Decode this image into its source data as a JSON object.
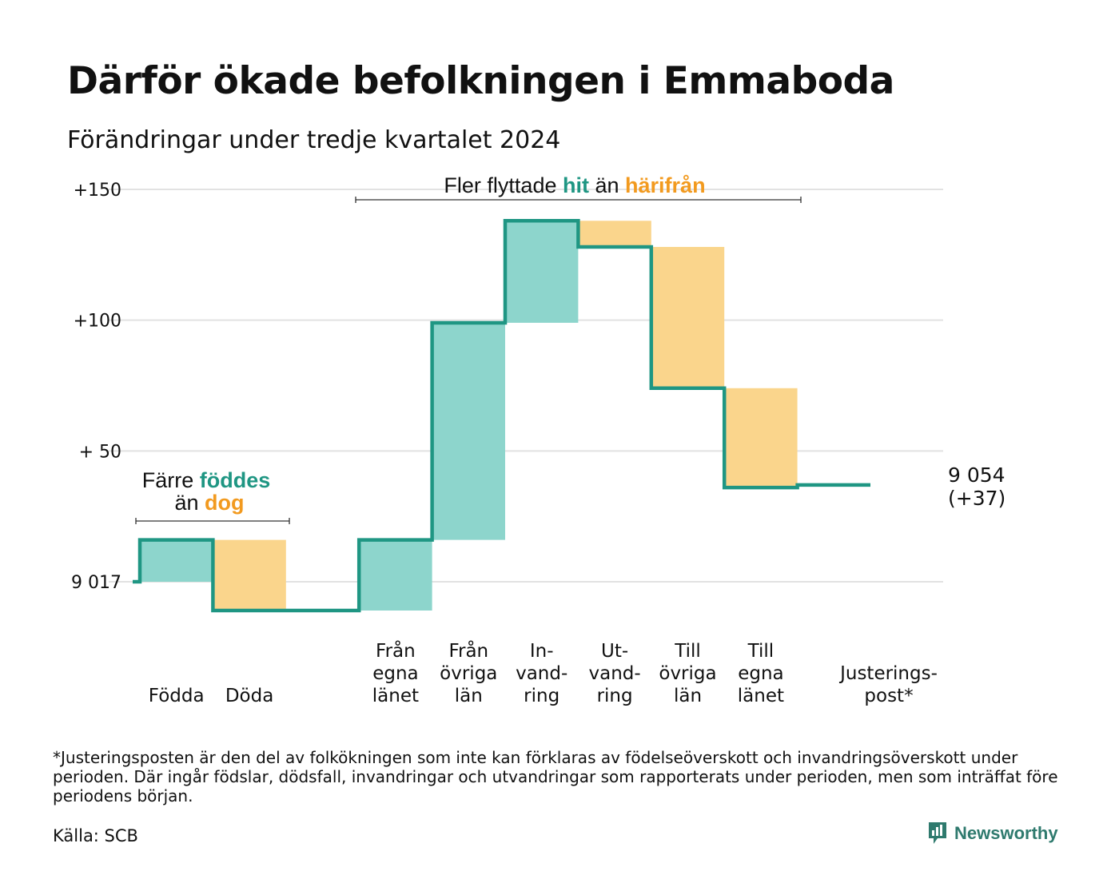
{
  "header": {
    "title": "Därför ökade befolkningen i Emmaboda",
    "subtitle": "Förändringar under tredje kvartalet 2024"
  },
  "chart_data": {
    "type": "waterfall",
    "start_label": "9 017",
    "y_ticks": [
      "+150",
      "+100",
      "+ 50",
      "9 017"
    ],
    "y_tick_values": [
      150,
      100,
      50,
      0
    ],
    "ylim": [
      -12,
      150
    ],
    "grid": true,
    "steps": [
      {
        "label": "Födda",
        "start": 0,
        "end": 16,
        "kind": "increase"
      },
      {
        "label": "Döda",
        "start": 16,
        "end": -11,
        "kind": "decrease"
      },
      {
        "label": "",
        "start": -11,
        "end": -11,
        "kind": "gap"
      },
      {
        "label": "Från egna länet",
        "start": -11,
        "end": 16,
        "kind": "increase"
      },
      {
        "label": "Från övriga län",
        "start": 16,
        "end": 99,
        "kind": "increase"
      },
      {
        "label": "In-vand-ring",
        "start": 99,
        "end": 138,
        "kind": "increase"
      },
      {
        "label": "Ut-vand-ring",
        "start": 138,
        "end": 128,
        "kind": "decrease"
      },
      {
        "label": "Till övriga län",
        "start": 128,
        "end": 74,
        "kind": "decrease"
      },
      {
        "label": "Till egna länet",
        "start": 74,
        "end": 36,
        "kind": "decrease"
      },
      {
        "label": "Justerings-post*",
        "start": 36,
        "end": 37,
        "kind": "adjustment"
      }
    ],
    "category_labels": [
      {
        "lines": [
          "Födda"
        ]
      },
      {
        "lines": [
          "Döda"
        ]
      },
      {
        "lines": [
          "Från",
          "egna",
          "länet"
        ]
      },
      {
        "lines": [
          "Från",
          "övriga",
          "län"
        ]
      },
      {
        "lines": [
          "In-",
          "vand-",
          "ring"
        ]
      },
      {
        "lines": [
          "Ut-",
          "vand-",
          "ring"
        ]
      },
      {
        "lines": [
          "Till",
          "övriga",
          "län"
        ]
      },
      {
        "lines": [
          "Till",
          "egna",
          "länet"
        ]
      },
      {
        "lines": [
          "Justerings-",
          "post*"
        ]
      }
    ],
    "end_label": [
      "9 054",
      "(+37)"
    ],
    "annotations": {
      "births": {
        "text_before": "Färre",
        "highlight_in": "föddes",
        "text_mid": "än",
        "highlight_out": "dog"
      },
      "moves": {
        "text_before": "Fler flyttade",
        "highlight_in": "hit",
        "text_mid": "än",
        "highlight_out": "härifrån"
      }
    },
    "colors": {
      "increase": "#8dd5cc",
      "decrease": "#fad58c",
      "line": "#1f9683",
      "highlight_in": "#1f9683",
      "highlight_out": "#f29a1f",
      "grid": "#e2e2e2"
    }
  },
  "footnote": "*Justeringsposten är den del av folkökningen som inte kan förklaras av födelseöverskott och invandringsöverskott under perioden. Där ingår födslar, dödsfall, invandringar och utvandringar som rapporterats under perioden, men som inträffat före periodens början.",
  "source": "Källa: SCB",
  "brand": {
    "name": "Newsworthy",
    "icon": "newsworthy-logo-icon",
    "color": "#2f7a6e"
  }
}
